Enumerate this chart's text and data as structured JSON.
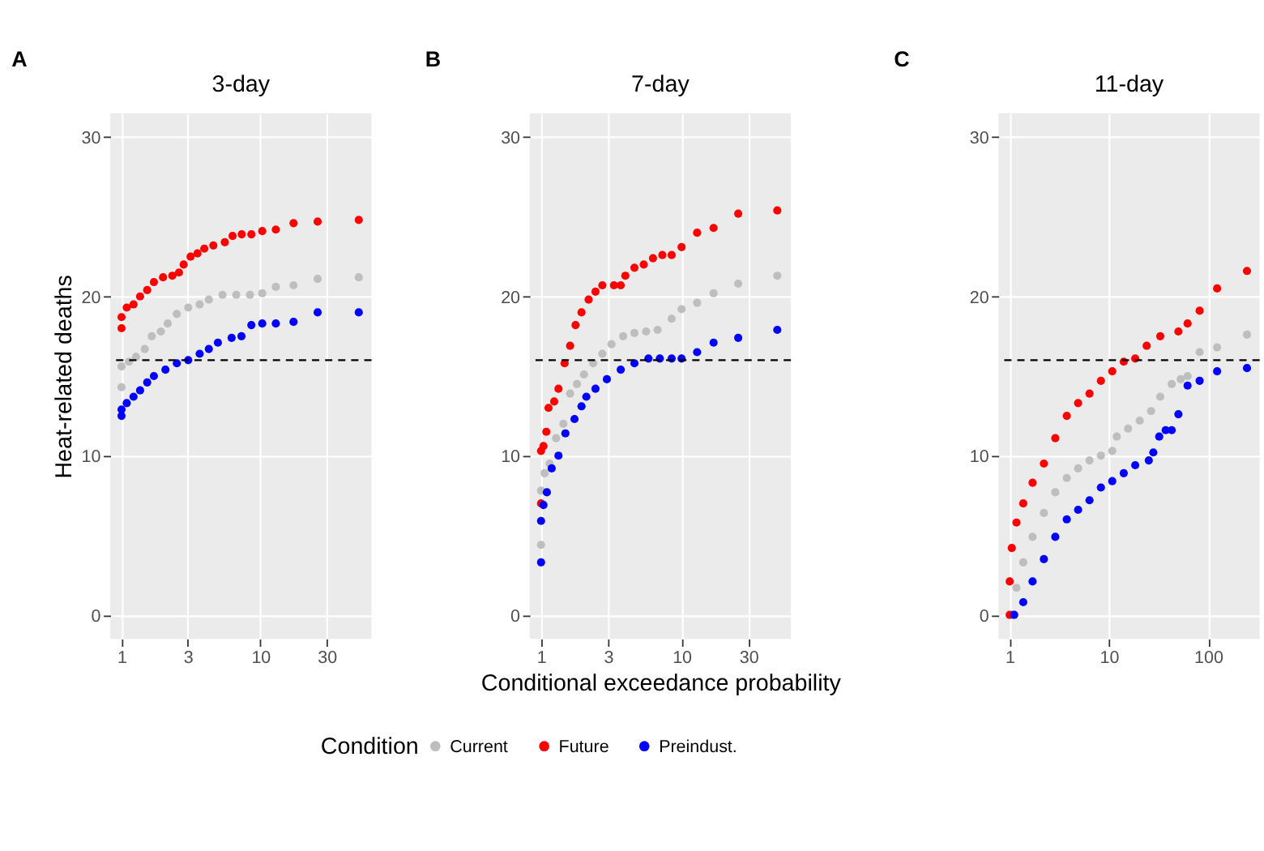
{
  "chart_data": [
    {
      "type": "scatter",
      "title": "3-day",
      "annotations": [
        "A"
      ],
      "ylabel": "Heat-related deaths",
      "legend": "bottom",
      "legend_title": "Condition",
      "log": "x",
      "grid": true,
      "marker": "circle",
      "xlim": [
        0.83,
        63
      ],
      "ylim": [
        -1.5,
        31.5
      ],
      "xticks": [
        1,
        3,
        10,
        30
      ],
      "yticks": [
        0,
        10,
        20,
        30
      ],
      "ref_lines": [
        {
          "axis": "y",
          "value": 16,
          "color": "#000000",
          "line_style": "dashed"
        }
      ],
      "series": [
        {
          "name": "Current",
          "color": "#bebebe",
          "x": [
            1.0,
            1.0,
            1.13,
            1.27,
            1.47,
            1.65,
            1.92,
            2.15,
            2.5,
            3.02,
            3.65,
            4.25,
            5.33,
            6.7,
            8.4,
            10.3,
            12.9,
            17.3,
            25.8,
            51
          ],
          "values": [
            14.3,
            15.6,
            15.9,
            16.2,
            16.7,
            17.5,
            17.8,
            18.3,
            18.9,
            19.3,
            19.5,
            19.8,
            20.1,
            20.1,
            20.1,
            20.2,
            20.6,
            20.7,
            21.1,
            21.2
          ]
        },
        {
          "name": "Future",
          "color": "#ff0000",
          "x": [
            1.0,
            1.0,
            1.09,
            1.22,
            1.36,
            1.53,
            1.71,
            1.99,
            2.32,
            2.59,
            2.8,
            3.14,
            3.52,
            3.94,
            4.58,
            5.54,
            6.3,
            7.33,
            8.6,
            10.3,
            12.9,
            17.3,
            25.8,
            51
          ],
          "values": [
            18.0,
            18.7,
            19.3,
            19.5,
            20.0,
            20.4,
            20.9,
            21.2,
            21.3,
            21.5,
            22.0,
            22.5,
            22.7,
            23.0,
            23.2,
            23.4,
            23.8,
            23.9,
            23.9,
            24.1,
            24.2,
            24.6,
            24.7,
            24.8
          ]
        },
        {
          "name": "Preindust.",
          "color": "#0000ff",
          "x": [
            1.0,
            1.0,
            1.09,
            1.22,
            1.36,
            1.53,
            1.71,
            2.07,
            2.5,
            3.02,
            3.65,
            4.25,
            4.94,
            6.2,
            7.3,
            8.6,
            10.3,
            12.9,
            17.3,
            25.8,
            51
          ],
          "values": [
            12.5,
            12.9,
            13.3,
            13.7,
            14.1,
            14.6,
            15.0,
            15.4,
            15.8,
            16.0,
            16.4,
            16.7,
            17.1,
            17.4,
            17.5,
            18.2,
            18.3,
            18.3,
            18.4,
            19.0,
            19.0
          ]
        }
      ]
    },
    {
      "type": "scatter",
      "title": "7-day",
      "annotations": [
        "B"
      ],
      "xlabel": "Conditional exceedance probability",
      "legend": "bottom",
      "log": "x",
      "grid": true,
      "marker": "circle",
      "xlim": [
        0.83,
        60
      ],
      "ylim": [
        -1.5,
        31.5
      ],
      "xticks": [
        1,
        3,
        10,
        30
      ],
      "yticks": [
        0,
        10,
        20,
        30
      ],
      "ref_lines": [
        {
          "axis": "y",
          "value": 16,
          "color": "#000000",
          "line_style": "dashed"
        }
      ],
      "series": [
        {
          "name": "Current",
          "color": "#bebebe",
          "x": [
            1.0,
            1.0,
            1.06,
            1.15,
            1.28,
            1.44,
            1.61,
            1.8,
            2.02,
            2.35,
            2.73,
            3.17,
            3.84,
            4.62,
            5.59,
            6.75,
            8.5,
            10.0,
            12.9,
            16.9,
            25.3,
            48
          ],
          "values": [
            4.4,
            7.8,
            8.9,
            9.5,
            11.1,
            12.0,
            13.9,
            14.5,
            15.1,
            15.8,
            16.4,
            17.0,
            17.5,
            17.7,
            17.8,
            17.9,
            18.6,
            19.2,
            19.6,
            20.2,
            20.8,
            21.3
          ]
        },
        {
          "name": "Future",
          "color": "#ff0000",
          "x": [
            1.0,
            1.0,
            1.04,
            1.09,
            1.13,
            1.24,
            1.33,
            1.47,
            1.61,
            1.76,
            1.94,
            2.18,
            2.44,
            2.73,
            3.3,
            3.69,
            3.98,
            4.62,
            5.38,
            6.26,
            7.3,
            8.5,
            10.0,
            12.9,
            16.9,
            25.3,
            48
          ],
          "values": [
            7.0,
            10.3,
            10.6,
            11.5,
            13.0,
            13.4,
            14.2,
            15.8,
            16.9,
            18.2,
            19.0,
            19.8,
            20.3,
            20.7,
            20.7,
            20.7,
            21.3,
            21.8,
            22.0,
            22.4,
            22.6,
            22.6,
            23.1,
            24.0,
            24.3,
            25.2,
            25.4
          ]
        },
        {
          "name": "Preindust.",
          "color": "#0000ff",
          "x": [
            1.0,
            1.0,
            1.04,
            1.1,
            1.19,
            1.33,
            1.49,
            1.73,
            1.94,
            2.1,
            2.44,
            2.94,
            3.69,
            4.62,
            5.81,
            7.0,
            8.5,
            10.0,
            12.9,
            16.9,
            25.3,
            48
          ],
          "values": [
            3.3,
            5.9,
            6.9,
            7.7,
            9.2,
            10.0,
            11.4,
            12.3,
            13.1,
            13.7,
            14.2,
            14.8,
            15.4,
            15.8,
            16.1,
            16.1,
            16.1,
            16.1,
            16.5,
            17.1,
            17.4,
            17.9
          ]
        }
      ]
    },
    {
      "type": "scatter",
      "title": "11-day",
      "annotations": [
        "C"
      ],
      "legend": "bottom",
      "log": "x",
      "grid": true,
      "marker": "circle",
      "xlim": [
        0.77,
        330
      ],
      "ylim": [
        -1.5,
        31.5
      ],
      "xticks": [
        1,
        10,
        100
      ],
      "yticks": [
        0,
        10,
        20,
        30
      ],
      "ref_lines": [
        {
          "axis": "y",
          "value": 16,
          "color": "#000000",
          "line_style": "dashed"
        }
      ],
      "series": [
        {
          "name": "Current",
          "color": "#bebebe",
          "x": [
            1.05,
            1.17,
            1.37,
            1.7,
            2.21,
            2.88,
            3.76,
            4.89,
            6.37,
            8.3,
            10.8,
            12.0,
            15.6,
            20.4,
            26.6,
            32.9,
            42.9,
            52.9,
            62,
            82,
            123,
            246
          ],
          "values": [
            0.0,
            1.7,
            3.3,
            4.9,
            6.4,
            7.7,
            8.6,
            9.2,
            9.7,
            10.0,
            10.3,
            11.2,
            11.7,
            12.2,
            12.8,
            13.7,
            14.5,
            14.8,
            15.0,
            16.5,
            16.8,
            17.6
          ]
        },
        {
          "name": "Future",
          "color": "#ff0000",
          "x": [
            1.0,
            1.0,
            1.05,
            1.17,
            1.37,
            1.7,
            2.21,
            2.88,
            3.76,
            4.89,
            6.37,
            8.3,
            10.8,
            14.1,
            18.4,
            24.0,
            32.9,
            50.1,
            62,
            82,
            123,
            246
          ],
          "values": [
            0.0,
            2.1,
            4.2,
            5.8,
            7.0,
            8.3,
            9.5,
            11.1,
            12.5,
            13.3,
            13.9,
            14.7,
            15.3,
            15.9,
            16.1,
            16.9,
            17.5,
            17.8,
            18.3,
            19.1,
            20.5,
            21.6
          ]
        },
        {
          "name": "Preindust.",
          "color": "#0000ff",
          "x": [
            1.11,
            1.37,
            1.7,
            2.21,
            2.88,
            3.76,
            4.89,
            6.37,
            8.3,
            10.8,
            14.1,
            18.4,
            25.2,
            28.0,
            32.1,
            37.3,
            42.9,
            50.1,
            62,
            82,
            123,
            246
          ],
          "values": [
            0.0,
            0.8,
            2.1,
            3.5,
            4.9,
            6.0,
            6.6,
            7.2,
            8.0,
            8.4,
            8.9,
            9.4,
            9.7,
            10.2,
            11.2,
            11.6,
            11.6,
            12.6,
            14.4,
            14.7,
            15.3,
            15.5
          ]
        }
      ]
    }
  ]
}
